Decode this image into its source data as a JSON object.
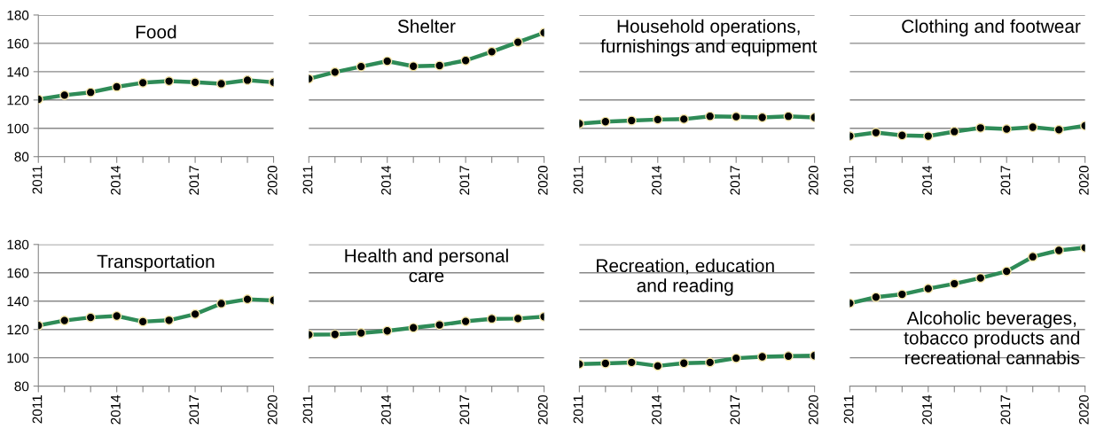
{
  "chart_data": [
    {
      "type": "line",
      "title": "Food",
      "x": [
        2011,
        2012,
        2013,
        2014,
        2015,
        2016,
        2017,
        2018,
        2019,
        2020
      ],
      "xlim": [
        2011,
        2020
      ],
      "xticks": [
        2011,
        {
          "value": 2012,
          "label": null
        },
        {
          "value": 2013,
          "label": null
        },
        2014,
        {
          "value": 2015,
          "label": null
        },
        {
          "value": 2016,
          "label": null
        },
        2017,
        {
          "value": 2018,
          "label": null
        },
        {
          "value": 2019,
          "label": null
        },
        2020
      ],
      "ylim": [
        80,
        180
      ],
      "yticks": [
        80,
        100,
        120,
        140,
        160,
        180
      ],
      "grid": "y",
      "marker": "circle",
      "series": [
        {
          "color": "#2e8b57",
          "values": [
            120.5,
            123.4,
            125.4,
            129.3,
            132.2,
            133.3,
            132.5,
            131.5,
            134,
            132.5
          ]
        }
      ]
    },
    {
      "type": "line",
      "title": "Shelter",
      "x": [
        2011,
        2012,
        2013,
        2014,
        2015,
        2016,
        2017,
        2018,
        2019,
        2020
      ],
      "xlim": [
        2011,
        2020
      ],
      "xticks": [
        2011,
        {
          "value": 2012,
          "label": null
        },
        {
          "value": 2013,
          "label": null
        },
        2014,
        {
          "value": 2015,
          "label": null
        },
        {
          "value": 2016,
          "label": null
        },
        2017,
        {
          "value": 2018,
          "label": null
        },
        {
          "value": 2019,
          "label": null
        },
        2020
      ],
      "ylim": [
        80,
        180
      ],
      "yticks": [
        80,
        100,
        120,
        140,
        160,
        180
      ],
      "grid": "y",
      "marker": "circle",
      "tick_labels": "x",
      "series": [
        {
          "color": "#2e8b57",
          "values": [
            135,
            139.7,
            143.6,
            147.4,
            143.8,
            144.3,
            147.9,
            154.1,
            160.8,
            167.5
          ]
        }
      ]
    },
    {
      "type": "line",
      "title": "Household operations, furnishings and equipment",
      "x": [
        2011,
        2012,
        2013,
        2014,
        2015,
        2016,
        2017,
        2018,
        2019,
        2020
      ],
      "xlim": [
        2011,
        2020
      ],
      "xticks": [
        2011,
        {
          "value": 2012,
          "label": null
        },
        {
          "value": 2013,
          "label": null
        },
        2014,
        {
          "value": 2015,
          "label": null
        },
        {
          "value": 2016,
          "label": null
        },
        2017,
        {
          "value": 2018,
          "label": null
        },
        {
          "value": 2019,
          "label": null
        },
        2020
      ],
      "ylim": [
        80,
        180
      ],
      "yticks": [
        80,
        100,
        120,
        140,
        160,
        180
      ],
      "grid": "y",
      "marker": "circle",
      "tick_labels": "x",
      "series": [
        {
          "color": "#2e8b57",
          "values": [
            103.3,
            104.7,
            105.5,
            106.2,
            106.5,
            108.5,
            108.2,
            107.7,
            108.5,
            107.7
          ]
        }
      ]
    },
    {
      "type": "line",
      "title": "Clothing and footwear",
      "x": [
        2011,
        2012,
        2013,
        2014,
        2015,
        2016,
        2017,
        2018,
        2019,
        2020
      ],
      "xlim": [
        2011,
        2020
      ],
      "xticks": [
        2011,
        {
          "value": 2012,
          "label": null
        },
        {
          "value": 2013,
          "label": null
        },
        2014,
        {
          "value": 2015,
          "label": null
        },
        {
          "value": 2016,
          "label": null
        },
        2017,
        {
          "value": 2018,
          "label": null
        },
        {
          "value": 2019,
          "label": null
        },
        2020
      ],
      "ylim": [
        80,
        180
      ],
      "yticks": [
        80,
        100,
        120,
        140,
        160,
        180
      ],
      "grid": "y",
      "marker": "circle",
      "tick_labels": "x",
      "series": [
        {
          "color": "#2e8b57",
          "values": [
            94.5,
            97,
            95,
            94.5,
            97.7,
            100.3,
            99.5,
            100.8,
            99,
            101.8
          ]
        }
      ]
    },
    {
      "type": "line",
      "title": "Transportation",
      "x": [
        2011,
        2012,
        2013,
        2014,
        2015,
        2016,
        2017,
        2018,
        2019,
        2020
      ],
      "xlim": [
        2011,
        2020
      ],
      "xticks": [
        2011,
        {
          "value": 2012,
          "label": null
        },
        {
          "value": 2013,
          "label": null
        },
        2014,
        {
          "value": 2015,
          "label": null
        },
        {
          "value": 2016,
          "label": null
        },
        2017,
        {
          "value": 2018,
          "label": null
        },
        {
          "value": 2019,
          "label": null
        },
        2020
      ],
      "ylim": [
        80,
        180
      ],
      "yticks": [
        80,
        100,
        120,
        140,
        160,
        180
      ],
      "grid": "y",
      "marker": "circle",
      "series": [
        {
          "color": "#2e8b57",
          "values": [
            122.8,
            126.3,
            128.5,
            129.5,
            125.5,
            126.5,
            130.8,
            138.3,
            141.3,
            140.5
          ]
        }
      ]
    },
    {
      "type": "line",
      "title": "Health and personal care",
      "x": [
        2011,
        2012,
        2013,
        2014,
        2015,
        2016,
        2017,
        2018,
        2019,
        2020
      ],
      "xlim": [
        2011,
        2020
      ],
      "xticks": [
        2011,
        {
          "value": 2012,
          "label": null
        },
        {
          "value": 2013,
          "label": null
        },
        2014,
        {
          "value": 2015,
          "label": null
        },
        {
          "value": 2016,
          "label": null
        },
        2017,
        {
          "value": 2018,
          "label": null
        },
        {
          "value": 2019,
          "label": null
        },
        2020
      ],
      "ylim": [
        80,
        180
      ],
      "yticks": [
        80,
        100,
        120,
        140,
        160,
        180
      ],
      "grid": "y",
      "marker": "circle",
      "tick_labels": "x",
      "series": [
        {
          "color": "#2e8b57",
          "values": [
            116.3,
            116.5,
            117.5,
            119,
            121.2,
            123.2,
            125.7,
            127.5,
            127.7,
            129
          ]
        }
      ]
    },
    {
      "type": "line",
      "title": "Recreation, education and reading",
      "x": [
        2011,
        2012,
        2013,
        2014,
        2015,
        2016,
        2017,
        2018,
        2019,
        2020
      ],
      "xlim": [
        2011,
        2020
      ],
      "xticks": [
        2011,
        {
          "value": 2012,
          "label": null
        },
        {
          "value": 2013,
          "label": null
        },
        2014,
        {
          "value": 2015,
          "label": null
        },
        {
          "value": 2016,
          "label": null
        },
        2017,
        {
          "value": 2018,
          "label": null
        },
        {
          "value": 2019,
          "label": null
        },
        2020
      ],
      "ylim": [
        80,
        180
      ],
      "yticks": [
        80,
        100,
        120,
        140,
        160,
        180
      ],
      "grid": "y",
      "marker": "circle",
      "tick_labels": "x",
      "series": [
        {
          "color": "#2e8b57",
          "values": [
            95.5,
            96,
            96.7,
            94.2,
            96.2,
            96.7,
            99.7,
            100.7,
            101.2,
            101.5
          ]
        }
      ]
    },
    {
      "type": "line",
      "title": "Alcoholic beverages, tobacco products and recreational cannabis",
      "x": [
        2011,
        2012,
        2013,
        2014,
        2015,
        2016,
        2017,
        2018,
        2019,
        2020
      ],
      "xlim": [
        2011,
        2020
      ],
      "xticks": [
        2011,
        {
          "value": 2012,
          "label": null
        },
        {
          "value": 2013,
          "label": null
        },
        2014,
        {
          "value": 2015,
          "label": null
        },
        {
          "value": 2016,
          "label": null
        },
        2017,
        {
          "value": 2018,
          "label": null
        },
        {
          "value": 2019,
          "label": null
        },
        2020
      ],
      "ylim": [
        80,
        180
      ],
      "yticks": [
        80,
        100,
        120,
        140,
        160,
        180
      ],
      "grid": "y",
      "marker": "circle",
      "tick_labels": "x",
      "series": [
        {
          "color": "#2e8b57",
          "values": [
            138.5,
            142.8,
            144.8,
            148.8,
            152.3,
            156.3,
            161,
            171.3,
            175.8,
            177.8
          ]
        }
      ]
    }
  ]
}
